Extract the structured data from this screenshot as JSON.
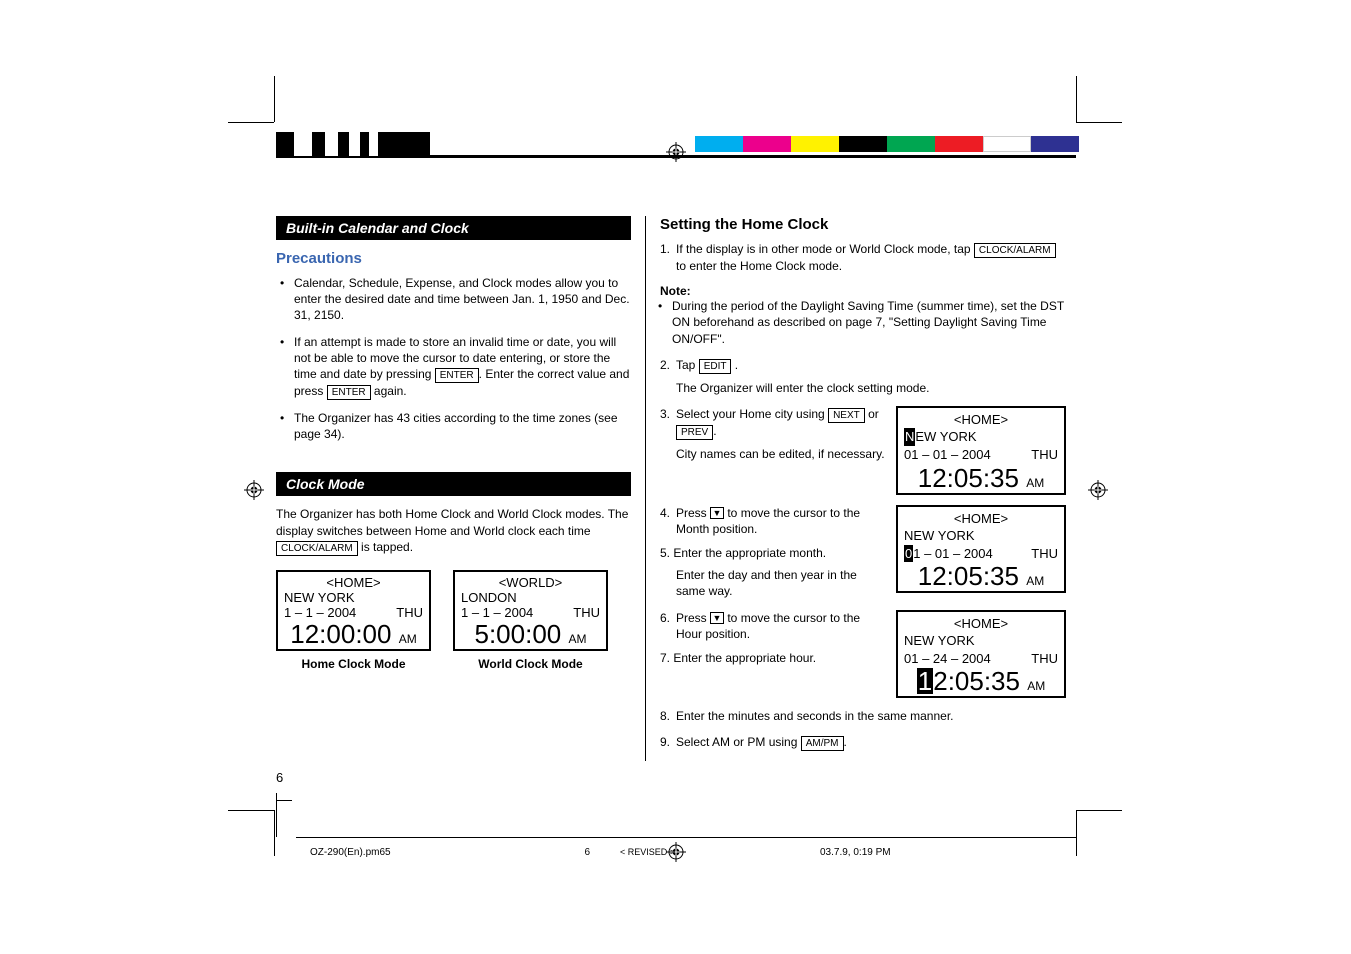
{
  "colorbar": [
    "#00aeef",
    "#ec008c",
    "#fff200",
    "#000000",
    "#00a651",
    "#ed1c24",
    "#ffffff",
    "#2e3192"
  ],
  "bw_widths": [
    18,
    18,
    13,
    13,
    11,
    11,
    9,
    9,
    52
  ],
  "left": {
    "section1_title": "Built-in Calendar and  Clock",
    "precautions_heading": "Precautions",
    "bullet1": "Calendar, Schedule, Expense, and Clock modes allow you to enter the desired date and time between Jan. 1, 1950 and Dec. 31, 2150.",
    "bullet2a": "If an attempt is made to store an invalid time or date, you will not be able to move the cursor to date entering, or store the time and date by pressing ",
    "bullet2_key1": "ENTER",
    "bullet2b": ". Enter the correct value and press ",
    "bullet2_key2": "ENTER",
    "bullet2c": " again.",
    "bullet3": "The Organizer has 43 cities according to the time zones (see page 34).",
    "section2_title": "Clock Mode",
    "clock_para_a": "The Organizer has both Home Clock and World Clock modes. The display switches between Home and World clock each time ",
    "clock_key": "CLOCK/ALARM",
    "clock_para_b": " is tapped.",
    "home_label": "Home Clock Mode",
    "world_label": "World Clock Mode"
  },
  "lcd_home": {
    "title": "<HOME>",
    "city": "NEW  YORK",
    "date": "1 – 1 – 2004",
    "dow": "THU",
    "time": "12:00:00",
    "ampm": "AM"
  },
  "lcd_world": {
    "title": "<WORLD>",
    "city": "LONDON",
    "date": "1 – 1 – 2004",
    "dow": "THU",
    "time": "5:00:00",
    "ampm": "AM"
  },
  "right": {
    "heading": "Setting the Home Clock",
    "s1a": "If the display is in other mode or World Clock mode, tap ",
    "s1_key": "CLOCK/ALARM",
    "s1b": " to enter the Home Clock mode.",
    "note_label": "Note:",
    "note_text": "During the period of the Daylight Saving Time (summer time), set the DST ON beforehand as described on page 7, \"Setting Daylight Saving Time ON/OFF\".",
    "s2a": "Tap ",
    "s2_key": "EDIT",
    "s2b": " .",
    "s2_sub": "The Organizer will enter the clock setting mode.",
    "s3a": "Select your Home city using ",
    "s3_key1": "NEXT",
    "s3_mid": " or ",
    "s3_key2": "PREV",
    "s3b": ".",
    "s3_sub": "City names can be edited, if necessary.",
    "s4": "Press ▼ to move the cursor to the Month position.",
    "s5": "Enter the appropriate month.",
    "s5_sub": "Enter the day and then year in the same way.",
    "s6": "Press ▼ to move the cursor to the Hour position.",
    "s7": "Enter the appropriate hour.",
    "s8": "Enter the minutes and seconds in the same manner.",
    "s9a": "Select AM or PM using ",
    "s9_key": "AM/PM",
    "s9b": "."
  },
  "lcd_r1": {
    "title": "<HOME>",
    "city_pre_cursor": "N",
    "city_rest": "EW  YORK",
    "date": "01 – 01 – 2004",
    "dow": "THU",
    "time": "12:05:35",
    "ampm": "AM"
  },
  "lcd_r2": {
    "title": "<HOME>",
    "city": "NEW  YORK",
    "date_cursor": "0",
    "date_rest": "1 – 01 – 2004",
    "dow": "THU",
    "time": "12:05:35",
    "ampm": "AM"
  },
  "lcd_r3": {
    "title": "<HOME>",
    "city": "NEW  YORK",
    "date": "01 – 24 – 2004",
    "dow": "THU",
    "time_cursor": "1",
    "time_rest": "2:05:35",
    "ampm": "AM"
  },
  "page_number": "6",
  "footer": {
    "file": "OZ-290(En).pm65",
    "page": "6",
    "rev": "< REVISED >",
    "datetime": "03.7.9, 0:19 PM"
  }
}
